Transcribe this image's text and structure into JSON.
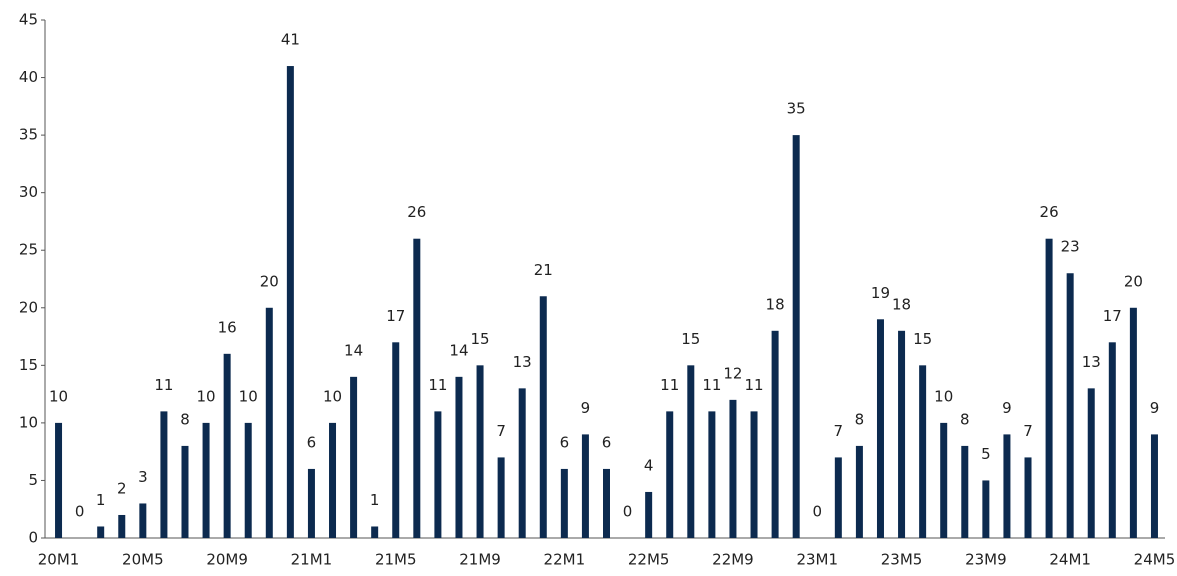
{
  "chart_data": {
    "type": "bar",
    "categories": [
      "20M1",
      null,
      null,
      null,
      "20M5",
      null,
      null,
      null,
      "20M9",
      null,
      null,
      null,
      "21M1",
      null,
      null,
      null,
      "21M5",
      null,
      null,
      null,
      "21M9",
      null,
      null,
      null,
      "22M1",
      null,
      null,
      null,
      "22M5",
      null,
      null,
      null,
      "22M9",
      null,
      null,
      null,
      "23M1",
      null,
      null,
      null,
      "23M5",
      null,
      null,
      null,
      "23M9",
      null,
      null,
      null,
      "24M1",
      null,
      null,
      null,
      "24M5"
    ],
    "values": [
      10,
      0,
      1,
      2,
      3,
      11,
      8,
      10,
      16,
      10,
      20,
      41,
      6,
      10,
      14,
      1,
      17,
      26,
      11,
      14,
      15,
      7,
      13,
      21,
      6,
      9,
      6,
      0,
      4,
      11,
      15,
      11,
      12,
      11,
      18,
      35,
      0,
      7,
      8,
      19,
      18,
      15,
      10,
      8,
      5,
      9,
      7,
      26,
      23,
      13,
      17,
      20,
      9
    ],
    "color": "#0c2a4f",
    "ylim": [
      0,
      45
    ],
    "yticks": [
      0,
      5,
      10,
      15,
      20,
      25,
      30,
      35,
      40,
      45
    ],
    "grid": false
  }
}
